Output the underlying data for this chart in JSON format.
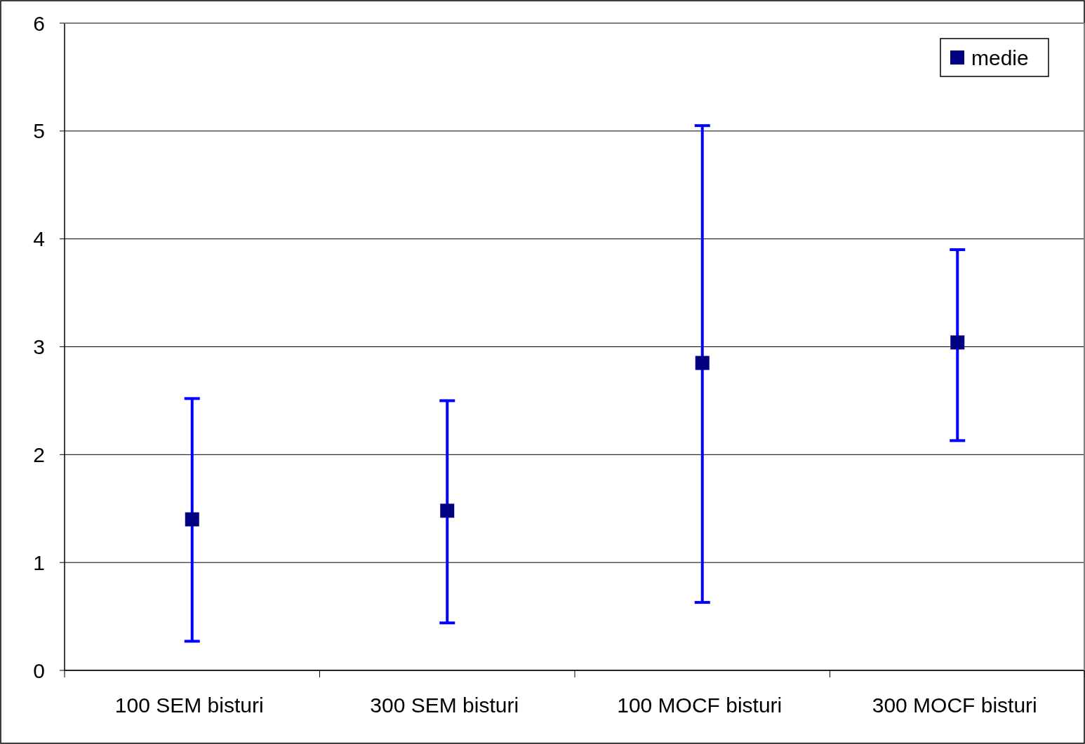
{
  "chart_data": {
    "type": "scatter",
    "categories": [
      "100 SEM bisturi",
      "300 SEM bisturi",
      "100 MOCF bisturi",
      "300 MOCF bisturi"
    ],
    "series": [
      {
        "name": "medie",
        "color": "#000080",
        "values": [
          1.4,
          1.48,
          2.85,
          3.04
        ],
        "errors": [
          [
            0.27,
            2.52
          ],
          [
            0.44,
            2.5
          ],
          [
            0.63,
            5.05
          ],
          [
            2.13,
            3.9
          ]
        ]
      }
    ],
    "ylim": [
      0,
      6
    ],
    "yticks": [
      0,
      1,
      2,
      3,
      4,
      5,
      6
    ],
    "grid": "y",
    "legend": "top right",
    "marker": "square"
  }
}
